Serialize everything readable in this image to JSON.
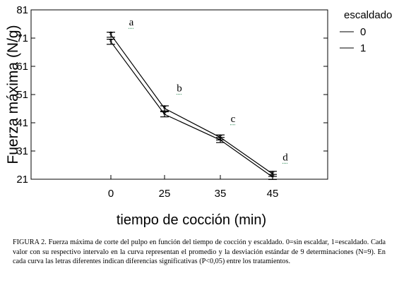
{
  "chart_data": {
    "type": "line",
    "categories": [
      "0",
      "25",
      "35",
      "45"
    ],
    "xlabel": "tiempo de cocción (min)",
    "ylabel": "Fuerza máxima (N/g)",
    "ylim": [
      21,
      81
    ],
    "yticks": [
      "21",
      "31",
      "41",
      "51",
      "61",
      "71",
      "81"
    ],
    "legend": {
      "title": "escaldado",
      "placement": "right"
    },
    "series": [
      {
        "name": "0",
        "values": [
          72.2,
          46.1,
          35.8,
          22.9
        ],
        "errors": [
          0.9,
          0.9,
          0.9,
          0.9
        ]
      },
      {
        "name": "1",
        "values": [
          69.7,
          44.0,
          34.9,
          21.8
        ],
        "errors": [
          0.9,
          0.9,
          0.9,
          0.9
        ]
      }
    ],
    "annotations": [
      {
        "text": "a",
        "category": "0"
      },
      {
        "text": "b",
        "category": "25"
      },
      {
        "text": "c",
        "category": "35"
      },
      {
        "text": "d",
        "category": "45"
      }
    ],
    "grid": false
  },
  "caption": "FIGURA 2. Fuerza máxima de corte del pulpo en función del tiempo de cocción y escaldado. 0=sin escaldar, 1=escaldado. Cada valor con su respectivo intervalo en la curva representan el promedio y la desviación estándar de 9 determinaciones (N=9). En cada curva las letras diferentes indican diferencias significativas (P<0,05) entre los tratamientos."
}
